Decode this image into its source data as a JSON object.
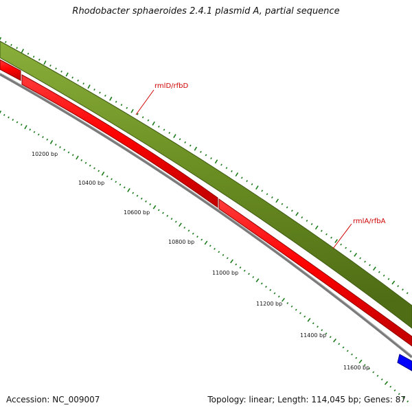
{
  "header": {
    "title": "Rhodobacter sphaeroides 2.4.1 plasmid A, partial sequence"
  },
  "footer": {
    "accession": "Accession: NC_009007",
    "stats": "Topology: linear; Length: 114,045 bp; Genes: 87"
  },
  "map": {
    "ruler_labels": [
      "10200 bp",
      "10400 bp",
      "10600 bp",
      "10800 bp",
      "11000 bp",
      "11200 bp",
      "11400 bp",
      "11600 bp"
    ],
    "genes": [
      {
        "name": "rmlD/rfbD"
      },
      {
        "name": "rmlA/rfbA"
      }
    ],
    "colors": {
      "backbone": "#808080",
      "cds": "#ff0000",
      "gene": "#6b8e23",
      "other_feature": "#0000ff",
      "tick": "#1a7a1a",
      "gene_label": "#d00000"
    }
  }
}
